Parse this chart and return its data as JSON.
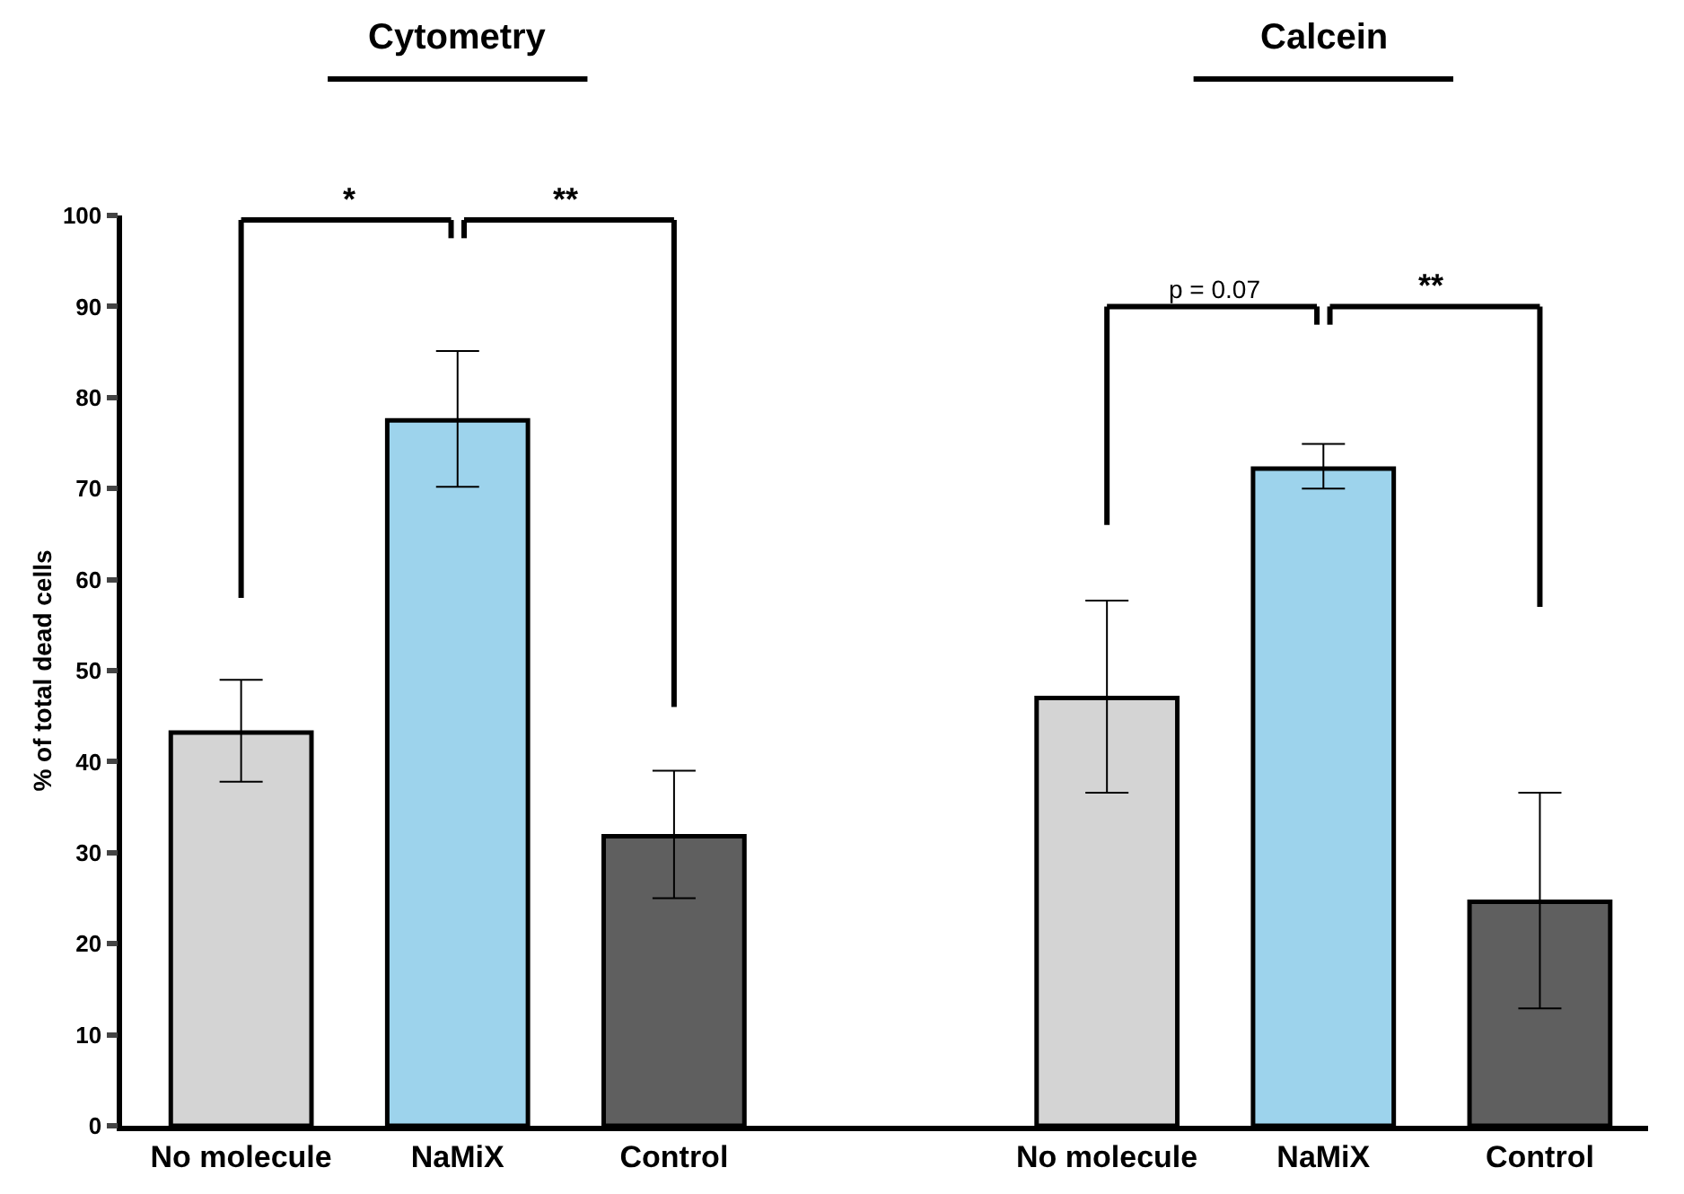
{
  "chart_data": {
    "type": "bar",
    "ylabel": "% of total dead cells",
    "categories": [
      "No molecule",
      "NaMiX",
      "Control",
      null,
      "No molecule",
      "NaMiX",
      "Control"
    ],
    "values": [
      43.2,
      77.5,
      31.8,
      null,
      47,
      72.2,
      24.6
    ],
    "colors": [
      "#d4d4d4",
      "#9dd3ec",
      "#5f5f5f",
      "#ffffff",
      "#d4d4d4",
      "#9dd3ec",
      "#5f5f5f"
    ],
    "errors": [
      [
        37.8,
        49
      ],
      [
        70.2,
        85.1
      ],
      [
        25,
        39
      ],
      null,
      [
        36.6,
        57.7
      ],
      [
        70,
        74.9
      ],
      [
        12.9,
        36.6
      ]
    ],
    "ylim": [
      0,
      100
    ],
    "yticks": [
      0,
      10,
      20,
      30,
      40,
      50,
      60,
      70,
      80,
      90,
      100
    ],
    "grid": false,
    "annotations": [
      "Cytometry",
      "Calcein",
      "*",
      "**",
      "p = 0.07",
      "**"
    ]
  }
}
